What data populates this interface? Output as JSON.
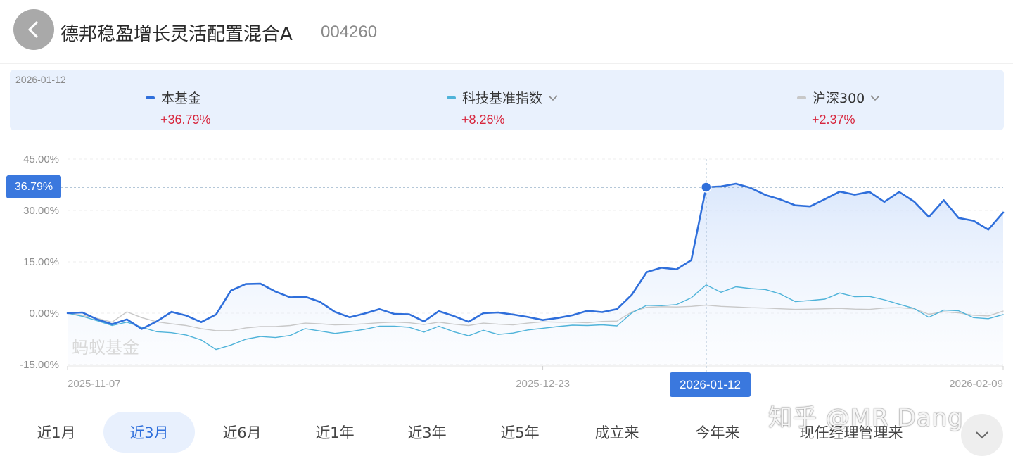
{
  "header": {
    "title": "德邦稳盈增长灵活配置混合A",
    "code": "004260",
    "back_icon": "chevron-left-icon"
  },
  "legend": {
    "date": "2026-01-12",
    "items": [
      {
        "label": "本基金",
        "value": "+36.79%",
        "color": "#2f6fdb",
        "has_dropdown": false
      },
      {
        "label": "科技基准指数",
        "value": "+8.26%",
        "color": "#4fb3d9",
        "has_dropdown": true
      },
      {
        "label": "沪深300",
        "value": "+2.37%",
        "color": "#c8c8c8",
        "has_dropdown": true
      }
    ]
  },
  "chart_data": {
    "type": "line",
    "y_ticks": [
      "45.00%",
      "30.00%",
      "15.00%",
      "0.00%",
      "-15.00%"
    ],
    "ylim": [
      -15,
      45
    ],
    "x_ticks": [
      "2025-11-07",
      "2025-12-23",
      "2026-02-09"
    ],
    "crosshair": {
      "date": "2026-01-12",
      "value_label": "36.79%",
      "index": 43,
      "value": 36.79
    },
    "watermark": "蚂蚁基金",
    "series": [
      {
        "name": "本基金",
        "color": "#2f6fdb",
        "values": [
          0,
          0.2,
          -1.8,
          -3.2,
          -1.8,
          -4.6,
          -2.4,
          0.4,
          -0.7,
          -2.6,
          -0.4,
          6.6,
          8.5,
          8.6,
          6.3,
          4.6,
          4.8,
          3.3,
          0.4,
          -1.2,
          -0.1,
          1.2,
          -0.2,
          -0.3,
          -2.4,
          0.6,
          -0.8,
          -2.5,
          0,
          0.2,
          -0.4,
          -1.1,
          -2,
          -1.4,
          -0.6,
          0.7,
          0.3,
          1.2,
          5.4,
          12,
          13.3,
          12.8,
          15.5,
          36.79,
          37,
          37.8,
          36.6,
          34.5,
          33.2,
          31.5,
          31.2,
          33.3,
          35.5,
          34.6,
          35.4,
          32.5,
          35.4,
          32.6,
          28.1,
          33,
          27.8,
          27,
          24.4,
          29.4
        ]
      },
      {
        "name": "科技基准指数",
        "color": "#4fb3d9",
        "values": [
          0,
          -0.9,
          -2.2,
          -3.6,
          -2.6,
          -4.1,
          -5.4,
          -5.7,
          -6.4,
          -7.8,
          -10.6,
          -9.3,
          -7.6,
          -6.8,
          -7.1,
          -6.5,
          -4.5,
          -5.2,
          -5.9,
          -5.4,
          -4.7,
          -3.8,
          -3.8,
          -4.1,
          -5.5,
          -3.8,
          -5.4,
          -6.6,
          -5,
          -6.2,
          -5.8,
          -4.9,
          -4.4,
          -3.9,
          -3.5,
          -3.6,
          -3.4,
          -3.7,
          0.1,
          2.3,
          2.2,
          2.5,
          4.5,
          8.26,
          6.1,
          7.7,
          7.2,
          6.9,
          5.6,
          3.4,
          3.7,
          4.1,
          5.9,
          4.8,
          4.9,
          3.9,
          2.6,
          1.4,
          -1.2,
          0.9,
          0.7,
          -1.3,
          -1.6,
          -0.4
        ]
      },
      {
        "name": "沪深300",
        "color": "#c8c8c8",
        "values": [
          0,
          -0.6,
          -1.5,
          -2.6,
          0.4,
          -1.3,
          -2.5,
          -3.1,
          -3.6,
          -4.5,
          -5.1,
          -5.1,
          -4.3,
          -3.9,
          -3.9,
          -3.6,
          -2.9,
          -3.1,
          -3.4,
          -3.3,
          -3.1,
          -2.8,
          -2.6,
          -2.8,
          -3.3,
          -2.6,
          -3.2,
          -3.6,
          -2.9,
          -3.2,
          -3.4,
          -2.9,
          -2.5,
          -2.6,
          -2.6,
          -2.8,
          -2.4,
          -2.3,
          0.4,
          1.7,
          1.9,
          1.8,
          2,
          2.37,
          2,
          1.8,
          1.6,
          1.5,
          1.3,
          1.1,
          1.2,
          1.3,
          1.4,
          1.2,
          1.1,
          1.5,
          1.6,
          1.3,
          -0.3,
          0.4,
          0.1,
          -0.6,
          -0.8,
          0.6
        ]
      }
    ]
  },
  "tabs": [
    {
      "label": "近1月",
      "active": false
    },
    {
      "label": "近3月",
      "active": true
    },
    {
      "label": "近6月",
      "active": false
    },
    {
      "label": "近1年",
      "active": false
    },
    {
      "label": "近3年",
      "active": false
    },
    {
      "label": "近5年",
      "active": false
    },
    {
      "label": "成立来",
      "active": false
    },
    {
      "label": "今年来",
      "active": false
    },
    {
      "label": "现任经理管理来",
      "active": false
    }
  ],
  "more_icon": "chevron-down-icon",
  "overlay_watermark": "知乎 @MR Dang"
}
